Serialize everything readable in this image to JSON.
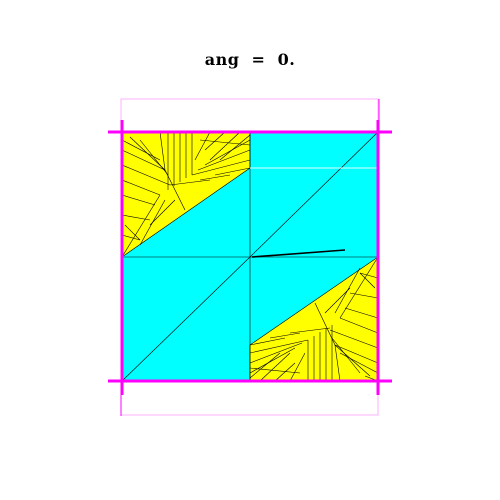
{
  "title": "ang  =  0.",
  "colors": {
    "background": "#ffffff",
    "fill_primary": "#00ffff",
    "fill_secondary": "#ffff00",
    "edge": "#000000",
    "boundary": "#ff00ff",
    "outer_frame": "#ffb0ff"
  }
}
